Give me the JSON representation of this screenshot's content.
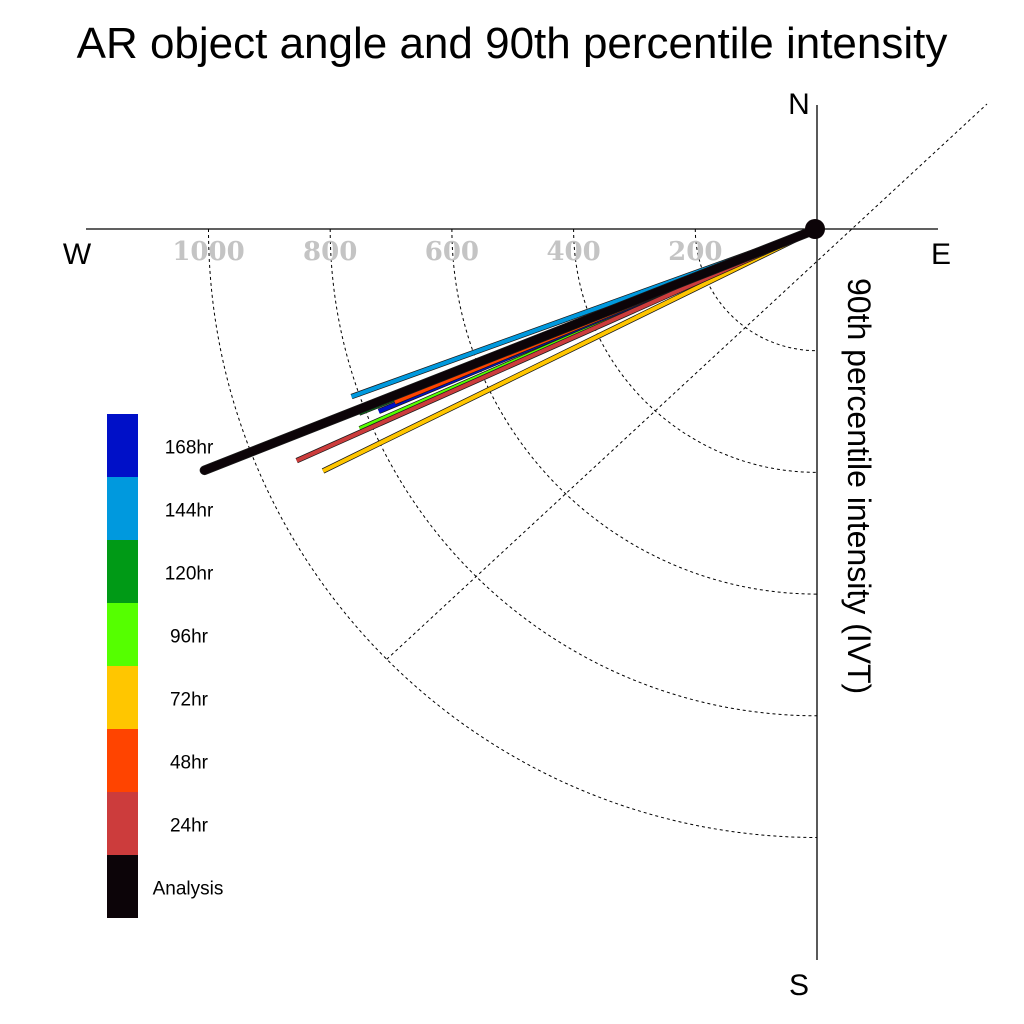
{
  "chart_data": {
    "type": "polar-vector",
    "title": "AR object angle and 90th percentile intensity",
    "ylabel": "90th percentile intensity (IVT)",
    "compass": {
      "north": "N",
      "south": "S",
      "east": "E",
      "west": "W"
    },
    "radial_ticks": [
      "200",
      "400",
      "600",
      "800",
      "1000"
    ],
    "radial_tick_values": [
      200,
      400,
      600,
      800,
      1000
    ],
    "rmax": 1200,
    "grid": true,
    "legend_position": "left",
    "legend": [
      {
        "name": "168hr",
        "color": "#0010c8"
      },
      {
        "name": "144hr",
        "color": "#0099de"
      },
      {
        "name": "120hr",
        "color": "#009a16"
      },
      {
        "name": "96hr",
        "color": "#55ff00"
      },
      {
        "name": "72hr",
        "color": "#ffc600"
      },
      {
        "name": "48hr",
        "color": "#ff4400"
      },
      {
        "name": "24hr",
        "color": "#cc3c3c"
      },
      {
        "name": "Analysis",
        "color": "#0c0408"
      }
    ],
    "series": [
      {
        "name": "144hr",
        "color": "#0099de",
        "angle_deg_below_west": 19.8,
        "intensity": 813
      },
      {
        "name": "120hr",
        "color": "#009a16",
        "angle_deg_below_west": 21.9,
        "intensity": 811
      },
      {
        "name": "96hr",
        "color": "#55ff00",
        "angle_deg_below_west": 23.6,
        "intensity": 820
      },
      {
        "name": "168hr",
        "color": "#0010c8",
        "angle_deg_below_west": 22.6,
        "intensity": 780
      },
      {
        "name": "72hr",
        "color": "#ffc600",
        "angle_deg_below_west": 26.1,
        "intensity": 904
      },
      {
        "name": "48hr",
        "color": "#ff4400",
        "angle_deg_below_west": 22.3,
        "intensity": 750
      },
      {
        "name": "24hr",
        "color": "#cc3c3c",
        "angle_deg_below_west": 24.0,
        "intensity": 936
      },
      {
        "name": "Analysis",
        "color": "#0c0408",
        "angle_deg_below_west": 21.5,
        "intensity": 1082
      }
    ]
  }
}
